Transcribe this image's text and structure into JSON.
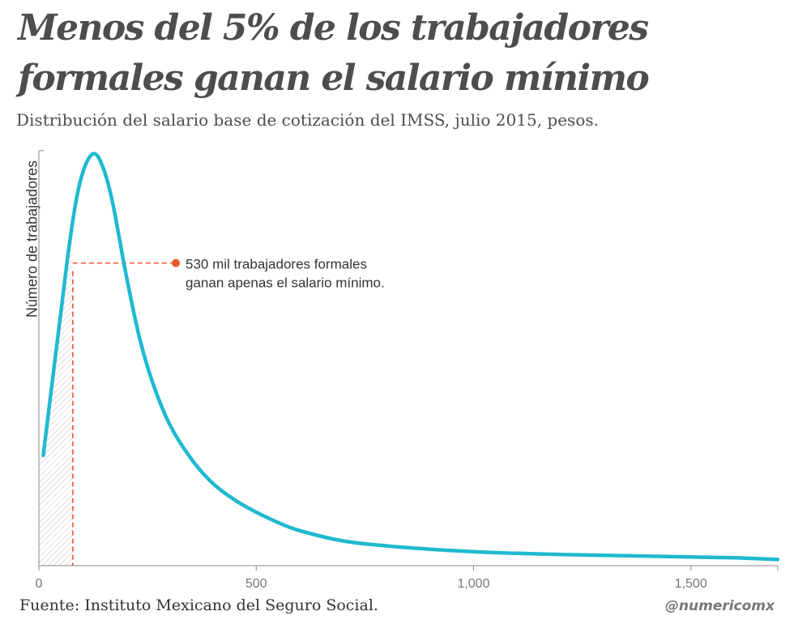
{
  "chart_data": {
    "type": "area",
    "title": "Menos del 5% de los trabajadores formales ganan el salario mínimo",
    "subtitle": "Distribución del salario base de cotización del IMSS, julio 2015, pesos.",
    "ylabel": "Número de trabajadores",
    "xlabel": "",
    "xlim": [
      0,
      1700
    ],
    "ylim": [
      0,
      1
    ],
    "xticks": [
      0,
      500,
      1000,
      1500
    ],
    "xtick_labels": [
      "0",
      "500",
      "1,000",
      "1,500"
    ],
    "series": [
      {
        "color": "#1fb9d0",
        "x": [
          10,
          30,
          50,
          70,
          90,
          110,
          130,
          150,
          170,
          200,
          230,
          260,
          300,
          350,
          400,
          450,
          500,
          550,
          600,
          700,
          800,
          900,
          1000,
          1100,
          1200,
          1300,
          1400,
          1500,
          1600,
          1700
        ],
        "y": [
          0.268,
          0.44,
          0.61,
          0.78,
          0.91,
          0.98,
          1.0,
          0.96,
          0.88,
          0.71,
          0.56,
          0.45,
          0.345,
          0.26,
          0.2,
          0.16,
          0.13,
          0.105,
          0.085,
          0.06,
          0.048,
          0.04,
          0.034,
          0.03,
          0.027,
          0.025,
          0.023,
          0.021,
          0.019,
          0.015
        ]
      }
    ],
    "shaded_region": {
      "x_from": 0,
      "x_to": 78,
      "pattern": "hatched"
    },
    "annotation": {
      "x": 78,
      "y": 0.735,
      "lines": [
        "530 mil trabajadores formales",
        "ganan apenas el salario mínimo."
      ],
      "color": "#e8572c"
    },
    "grid": false
  },
  "source": "Fuente: Instituto Mexicano del Seguro Social.",
  "brand": "@numericomx",
  "colors": {
    "line": "#1fb9d0",
    "annotation": "#e8572c",
    "text": "#4d4d4d",
    "axis": "#888888"
  }
}
